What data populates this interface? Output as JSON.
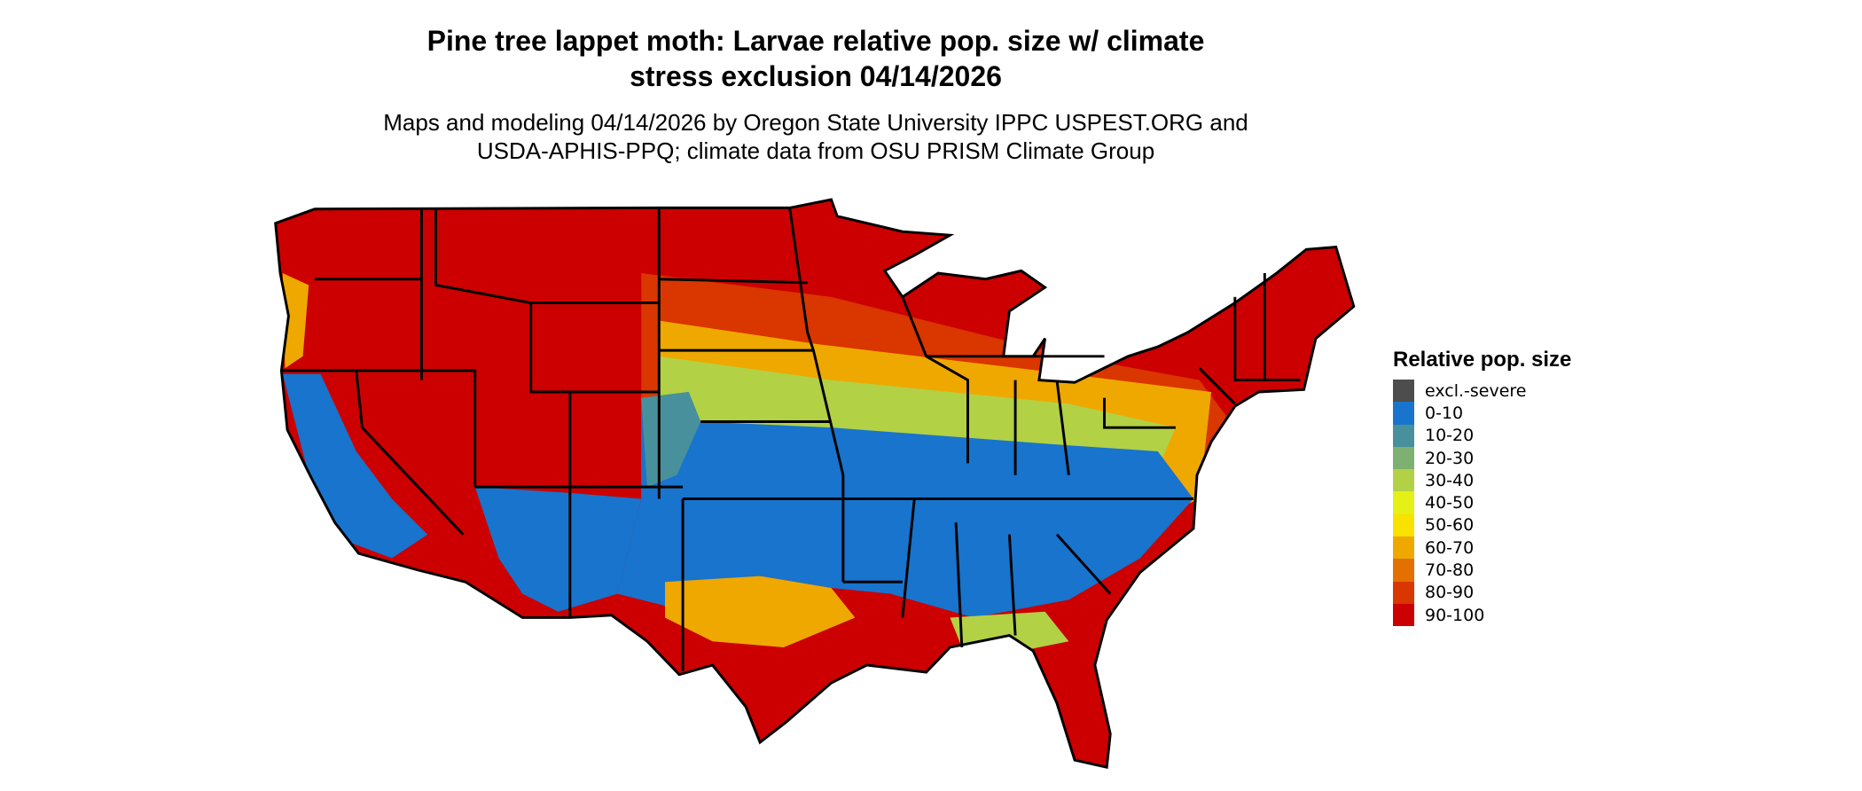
{
  "title_line1": "Pine tree lappet moth: Larvae relative pop. size w/ climate",
  "title_line2": "stress exclusion 04/14/2026",
  "subtitle_line1": "Maps and modeling 04/14/2026 by Oregon State University IPPC USPEST.ORG and",
  "subtitle_line2": "USDA-APHIS-PPQ; climate data from OSU PRISM Climate Group",
  "map_region": "Contiguous United States with state boundaries",
  "legend": {
    "title": "Relative pop. size",
    "items": [
      {
        "label": "excl.-severe",
        "color": "#4d4d4d"
      },
      {
        "label": "0-10",
        "color": "#1874cd"
      },
      {
        "label": "10-20",
        "color": "#48919c"
      },
      {
        "label": "20-30",
        "color": "#7db071"
      },
      {
        "label": "30-40",
        "color": "#b2d145"
      },
      {
        "label": "40-50",
        "color": "#e5f016"
      },
      {
        "label": "50-60",
        "color": "#f9e100"
      },
      {
        "label": "60-70",
        "color": "#efa800"
      },
      {
        "label": "70-80",
        "color": "#e37000"
      },
      {
        "label": "80-90",
        "color": "#d93600"
      },
      {
        "label": "90-100",
        "color": "#cc0000"
      }
    ]
  }
}
